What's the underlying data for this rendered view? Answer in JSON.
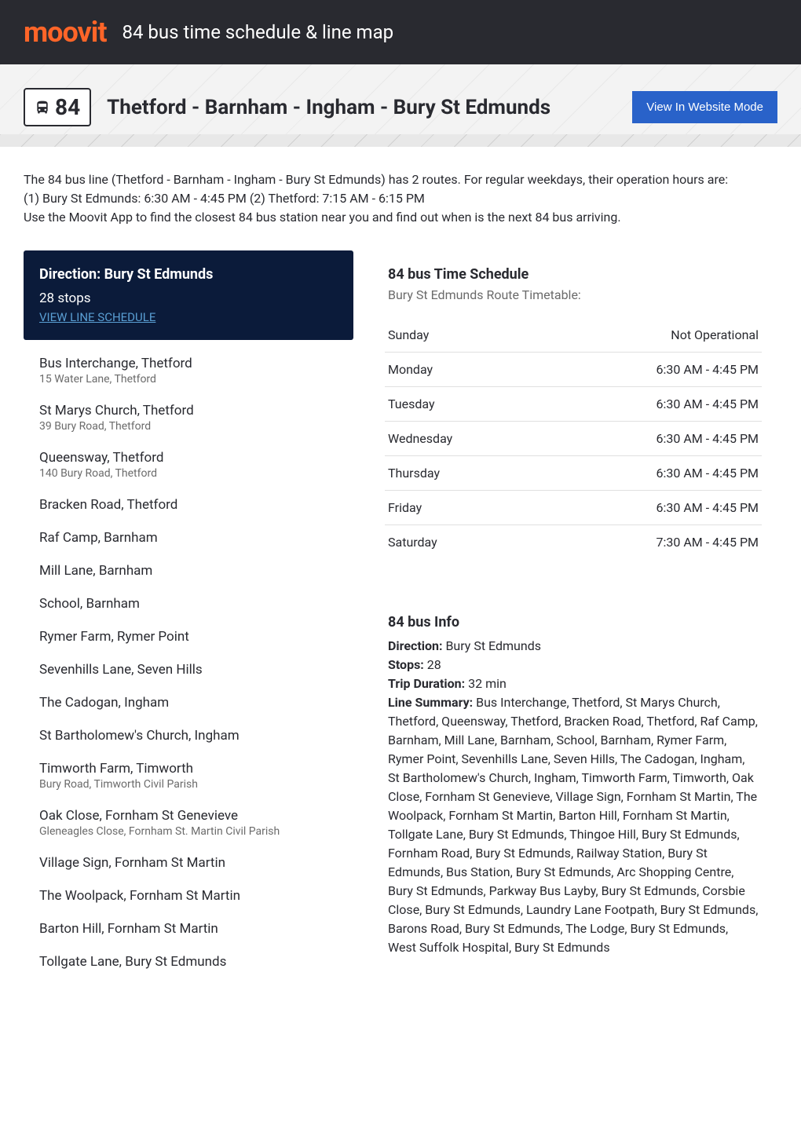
{
  "header": {
    "logo": "moovit",
    "title": "84 bus time schedule & line map"
  },
  "route": {
    "badge_number": "84",
    "title": "Thetford - Barnham - Ingham - Bury St Edmunds",
    "view_mode_button": "View In Website Mode"
  },
  "intro": {
    "line1": "The 84 bus line (Thetford - Barnham - Ingham - Bury St Edmunds) has 2 routes. For regular weekdays, their operation hours are:",
    "line2": "(1) Bury St Edmunds: 6:30 AM - 4:45 PM (2) Thetford: 7:15 AM - 6:15 PM",
    "line3": "Use the Moovit App to find the closest 84 bus station near you and find out when is the next 84 bus arriving."
  },
  "direction_panel": {
    "heading": "Direction: Bury St Edmunds",
    "stops_count": "28 stops",
    "view_link": "VIEW LINE SCHEDULE"
  },
  "stops": [
    {
      "name": "Bus Interchange, Thetford",
      "address": "15 Water Lane, Thetford"
    },
    {
      "name": "St Marys Church, Thetford",
      "address": "39 Bury Road, Thetford"
    },
    {
      "name": "Queensway, Thetford",
      "address": "140 Bury Road, Thetford"
    },
    {
      "name": "Bracken Road, Thetford",
      "address": ""
    },
    {
      "name": "Raf Camp, Barnham",
      "address": ""
    },
    {
      "name": "Mill Lane, Barnham",
      "address": ""
    },
    {
      "name": "School, Barnham",
      "address": ""
    },
    {
      "name": "Rymer Farm, Rymer Point",
      "address": ""
    },
    {
      "name": "Sevenhills Lane, Seven Hills",
      "address": ""
    },
    {
      "name": "The Cadogan, Ingham",
      "address": ""
    },
    {
      "name": "St Bartholomew's Church, Ingham",
      "address": ""
    },
    {
      "name": "Timworth Farm, Timworth",
      "address": "Bury Road, Timworth Civil Parish"
    },
    {
      "name": "Oak Close, Fornham St Genevieve",
      "address": "Gleneagles Close, Fornham St. Martin Civil Parish"
    },
    {
      "name": "Village Sign, Fornham St Martin",
      "address": ""
    },
    {
      "name": "The Woolpack, Fornham St Martin",
      "address": ""
    },
    {
      "name": "Barton Hill, Fornham St Martin",
      "address": ""
    },
    {
      "name": "Tollgate Lane, Bury St Edmunds",
      "address": ""
    }
  ],
  "schedule": {
    "title": "84 bus Time Schedule",
    "subtitle": "Bury St Edmunds Route Timetable:",
    "rows": [
      {
        "day": "Sunday",
        "hours": "Not Operational"
      },
      {
        "day": "Monday",
        "hours": "6:30 AM - 4:45 PM"
      },
      {
        "day": "Tuesday",
        "hours": "6:30 AM - 4:45 PM"
      },
      {
        "day": "Wednesday",
        "hours": "6:30 AM - 4:45 PM"
      },
      {
        "day": "Thursday",
        "hours": "6:30 AM - 4:45 PM"
      },
      {
        "day": "Friday",
        "hours": "6:30 AM - 4:45 PM"
      },
      {
        "day": "Saturday",
        "hours": "7:30 AM - 4:45 PM"
      }
    ]
  },
  "info": {
    "title": "84 bus Info",
    "direction_label": "Direction:",
    "direction_value": " Bury St Edmunds",
    "stops_label": "Stops:",
    "stops_value": " 28",
    "duration_label": "Trip Duration:",
    "duration_value": " 32 min",
    "summary_label": "Line Summary:",
    "summary_value": " Bus Interchange, Thetford, St Marys Church, Thetford, Queensway, Thetford, Bracken Road, Thetford, Raf Camp, Barnham, Mill Lane, Barnham, School, Barnham, Rymer Farm, Rymer Point, Sevenhills Lane, Seven Hills, The Cadogan, Ingham, St Bartholomew's Church, Ingham, Timworth Farm, Timworth, Oak Close, Fornham St Genevieve, Village Sign, Fornham St Martin, The Woolpack, Fornham St Martin, Barton Hill, Fornham St Martin, Tollgate Lane, Bury St Edmunds, Thingoe Hill, Bury St Edmunds, Fornham Road, Bury St Edmunds, Railway Station, Bury St Edmunds, Bus Station, Bury St Edmunds, Arc Shopping Centre, Bury St Edmunds, Parkway Bus Layby, Bury St Edmunds, Corsbie Close, Bury St Edmunds, Laundry Lane Footpath, Bury St Edmunds, Barons Road, Bury St Edmunds, The Lodge, Bury St Edmunds, West Suffolk Hospital, Bury St Edmunds"
  },
  "colors": {
    "header_bg": "#292a30",
    "logo_color": "#ff6528",
    "direction_panel_bg": "#0b1b3a",
    "button_bg": "#2962c9",
    "link_color": "#5a9fd4",
    "text_primary": "#292a30",
    "text_secondary": "#6b6b6b",
    "border_color": "#e0e0e0"
  }
}
